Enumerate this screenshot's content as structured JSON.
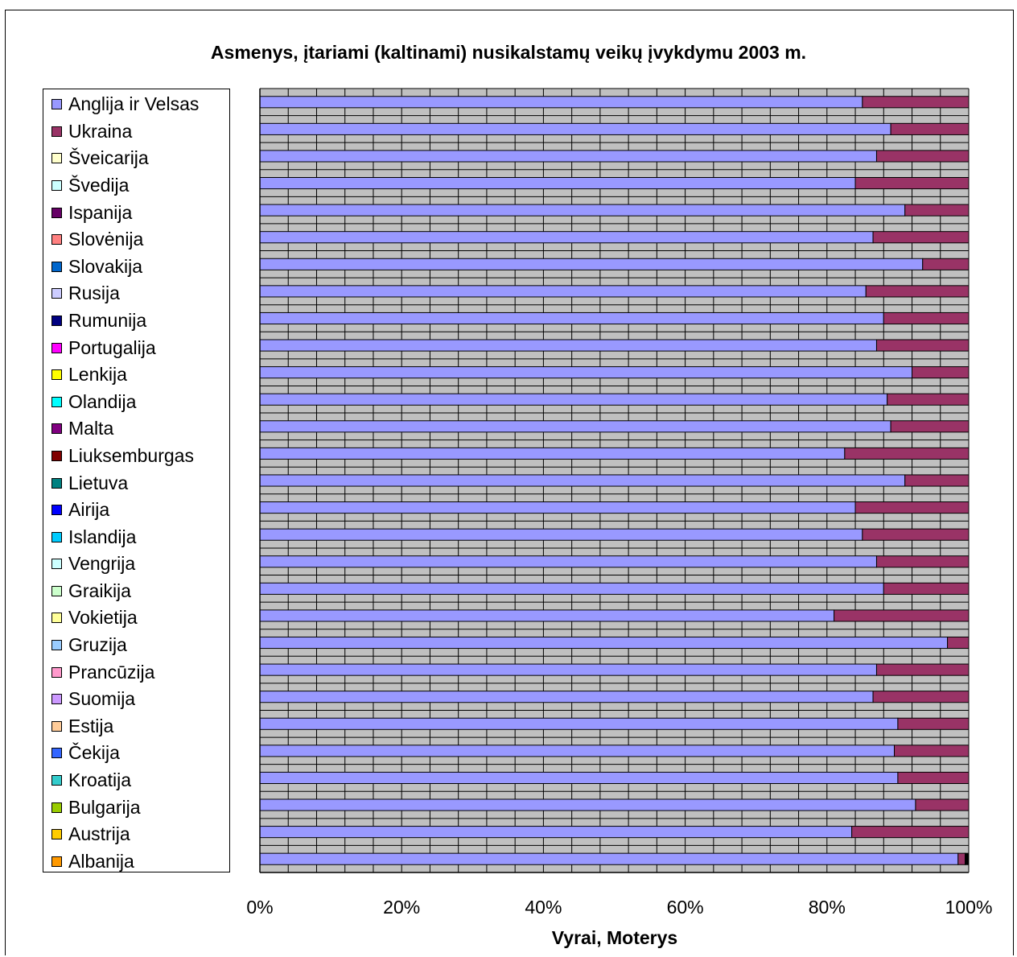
{
  "chart_data": {
    "type": "bar",
    "orientation": "horizontal",
    "stacked": "percent",
    "title": "Asmenys, įtariami (kaltinami) nusikalstamų veikų įvykdymu 2003 m.",
    "xlabel": "Vyrai, Moterys",
    "ylabel": "",
    "xlim": [
      0,
      100
    ],
    "x_ticks": [
      "0%",
      "20%",
      "40%",
      "60%",
      "80%",
      "100%"
    ],
    "grid": true,
    "legend_position": "left",
    "categories": [
      "Anglija ir Velsas",
      "Ukraina",
      "Šveicarija",
      "Švedija",
      "Ispanija",
      "Slovėnija",
      "Slovakija",
      "Rusija",
      "Rumunija",
      "Portugalija",
      "Lenkija",
      "Olandija",
      "Malta",
      "Liuksemburgas",
      "Lietuva",
      "Airija",
      "Islandija",
      "Vengrija",
      "Graikija",
      "Vokietija",
      "Gruzija",
      "Prancūzija",
      "Suomija",
      "Estija",
      "Čekija",
      "Kroatija",
      "Bulgarija",
      "Austrija",
      "Albanija"
    ],
    "legend_colors": [
      "#9999ff",
      "#993366",
      "#ffffcc",
      "#ccffff",
      "#660066",
      "#ff8080",
      "#0066cc",
      "#ccccff",
      "#000080",
      "#ff00ff",
      "#ffff00",
      "#00ffff",
      "#800080",
      "#800000",
      "#008080",
      "#0000ff",
      "#00ccff",
      "#ccffff",
      "#ccffcc",
      "#ffff99",
      "#99ccff",
      "#ff99cc",
      "#cc99ff",
      "#ffcc99",
      "#3366ff",
      "#33cccc",
      "#99cc00",
      "#ffcc00",
      "#ff9900"
    ],
    "series": [
      {
        "color": "#9999ff",
        "values": [
          85,
          89,
          87,
          84,
          91,
          86.5,
          93.5,
          85.5,
          88,
          87,
          92,
          88.5,
          89,
          82.5,
          91,
          84,
          85,
          87,
          88,
          81,
          97,
          87,
          86.5,
          90,
          89.5,
          90,
          92.5,
          83.5,
          98.5
        ]
      },
      {
        "color": "#993366",
        "values": [
          15,
          11,
          13,
          16,
          9,
          13.5,
          6.5,
          14.5,
          12,
          13,
          8,
          11.5,
          11,
          17.5,
          9,
          16,
          15,
          13,
          12,
          19,
          3,
          13,
          13.5,
          10,
          10.5,
          10,
          7.5,
          16.5,
          1
        ]
      },
      {
        "color": "#000000",
        "values": [
          0,
          0,
          0,
          0,
          0,
          0,
          0,
          0,
          0,
          0,
          0,
          0,
          0,
          0,
          0,
          0,
          0,
          0,
          0,
          0,
          0,
          0,
          0,
          0,
          0,
          0,
          0,
          0,
          0.5
        ]
      }
    ],
    "plot_area_color": "#c0c0c0"
  }
}
